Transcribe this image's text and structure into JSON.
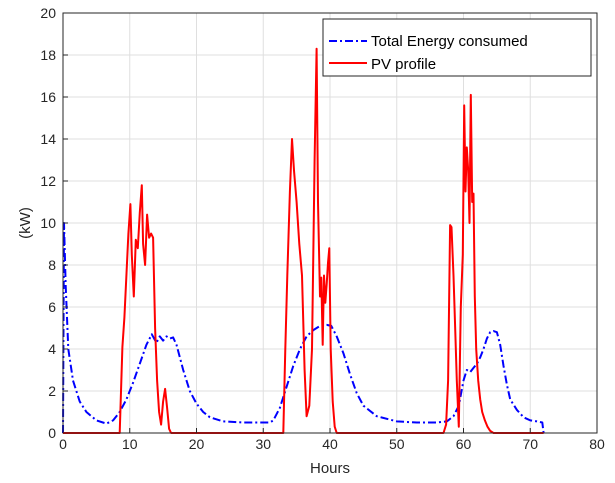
{
  "chart_data": {
    "type": "line",
    "title": "",
    "xlabel": "Hours",
    "ylabel": "(kW)",
    "xlim": [
      0,
      80
    ],
    "ylim": [
      0,
      20
    ],
    "xticks": [
      "0",
      "10",
      "20",
      "30",
      "40",
      "50",
      "60",
      "70",
      "80"
    ],
    "yticks": [
      "0",
      "2",
      "4",
      "6",
      "8",
      "10",
      "12",
      "14",
      "16",
      "18",
      "20"
    ],
    "grid": true,
    "legend_position": "top-right",
    "series": [
      {
        "name": "Total Energy consumed",
        "color": "#0000ff",
        "style": "dash-dot",
        "x": [
          0,
          0.15,
          0.4,
          0.8,
          1.5,
          2.5,
          3.5,
          5,
          6.5,
          7.5,
          8.5,
          9.5,
          10.5,
          11.5,
          12.5,
          13.3,
          14,
          14.5,
          15,
          15.5,
          16,
          16.5,
          17,
          18,
          19,
          20,
          21,
          22,
          24,
          27,
          29,
          31,
          31.5,
          32.5,
          33.5,
          34.5,
          35.5,
          36.5,
          37.5,
          38.5,
          39.5,
          40.2,
          41,
          42,
          43,
          44,
          45,
          47,
          50,
          53,
          56,
          57.5,
          58.5,
          59.3,
          60,
          60.5,
          61,
          61.5,
          62,
          62.5,
          63,
          63.5,
          64,
          64.5,
          65,
          65.5,
          66,
          66.5,
          67,
          68,
          69,
          70,
          71,
          71.8,
          72
        ],
        "y": [
          0,
          10,
          7,
          4,
          2.5,
          1.5,
          1,
          0.6,
          0.45,
          0.6,
          1.0,
          1.6,
          2.4,
          3.3,
          4.2,
          4.7,
          4.3,
          4.6,
          4.4,
          4.6,
          4.5,
          4.55,
          4.2,
          3.0,
          2.0,
          1.4,
          1.0,
          0.75,
          0.55,
          0.5,
          0.5,
          0.5,
          0.6,
          1.2,
          2.2,
          3.2,
          4.0,
          4.6,
          4.9,
          5.1,
          5.15,
          5.1,
          4.6,
          3.8,
          2.8,
          1.9,
          1.3,
          0.8,
          0.55,
          0.5,
          0.5,
          0.55,
          0.8,
          1.3,
          2.5,
          3.0,
          2.9,
          3.1,
          3.3,
          3.6,
          4.0,
          4.5,
          4.8,
          4.85,
          4.8,
          4.2,
          3.2,
          2.3,
          1.6,
          1.1,
          0.75,
          0.6,
          0.55,
          0.5,
          0
        ]
      },
      {
        "name": "PV profile",
        "color": "#ff0000",
        "style": "solid",
        "x": [
          0,
          8.5,
          8.9,
          9.2,
          9.5,
          9.8,
          10.1,
          10.3,
          10.6,
          10.9,
          11.2,
          11.5,
          11.8,
          12.0,
          12.3,
          12.6,
          12.9,
          13.2,
          13.5,
          13.8,
          14.1,
          14.4,
          14.7,
          15.0,
          15.3,
          15.6,
          15.9,
          16.2,
          16.5,
          17,
          33,
          33.3,
          33.6,
          34.0,
          34.3,
          34.6,
          35.0,
          35.4,
          35.8,
          36.2,
          36.5,
          36.9,
          37.3,
          37.7,
          38.0,
          38.2,
          38.5,
          38.7,
          38.9,
          39.1,
          39.3,
          39.5,
          39.7,
          39.9,
          40.1,
          40.4,
          40.7,
          41.0,
          41.3,
          57,
          57.4,
          57.7,
          58.0,
          58.2,
          58.5,
          58.8,
          59.0,
          59.3,
          59.6,
          59.9,
          60.1,
          60.3,
          60.5,
          60.7,
          60.9,
          61.1,
          61.3,
          61.5,
          61.7,
          61.9,
          62.2,
          62.5,
          62.8,
          63.2,
          63.6,
          64.0,
          64.5,
          65,
          72
        ],
        "y": [
          0,
          0,
          4.1,
          5.5,
          7.5,
          9.5,
          10.9,
          8.5,
          6.5,
          9.2,
          8.8,
          10.5,
          11.8,
          9.0,
          8.0,
          10.4,
          9.3,
          9.5,
          9.3,
          5.0,
          2.5,
          1.0,
          0.4,
          1.5,
          2.1,
          1.2,
          0.2,
          0.0,
          0,
          0,
          0,
          4.0,
          7.5,
          11.5,
          14.0,
          12.5,
          11.0,
          9.0,
          7.5,
          3.0,
          0.8,
          1.3,
          4.0,
          13.0,
          18.3,
          11.0,
          6.5,
          7.4,
          4.2,
          7.5,
          6.2,
          7.1,
          8.1,
          8.8,
          4.0,
          1.5,
          0.3,
          0.0,
          0,
          0,
          0.4,
          2.5,
          9.9,
          9.8,
          7.5,
          4.5,
          2.5,
          0.3,
          6.0,
          8.5,
          15.6,
          11.5,
          13.6,
          12.5,
          10.0,
          16.1,
          11.0,
          11.4,
          6.5,
          4.0,
          2.5,
          1.6,
          1.0,
          0.6,
          0.3,
          0.1,
          0.0,
          0,
          0
        ]
      }
    ]
  }
}
